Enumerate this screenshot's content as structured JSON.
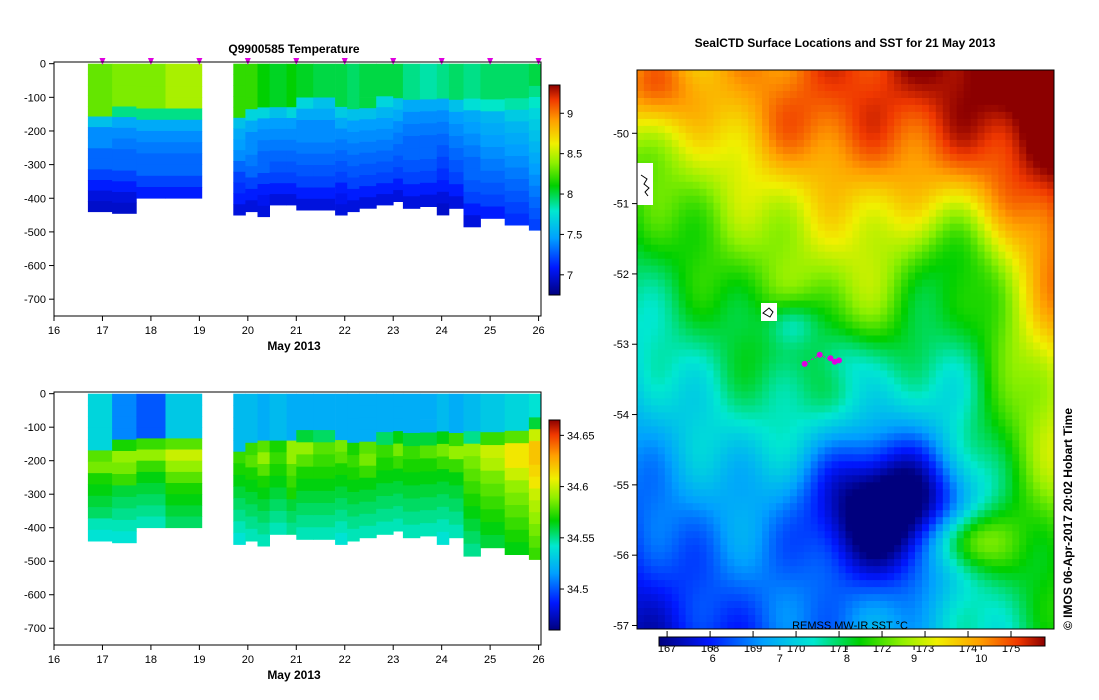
{
  "chart_data": [
    {
      "type": "heatmap",
      "title": "Q9900585  Temperature",
      "xlabel": "May 2013",
      "xticks": [
        "16",
        "17",
        "18",
        "19",
        "20",
        "21",
        "22",
        "23",
        "24",
        "25",
        "26"
      ],
      "yticks": [
        "0",
        "-100",
        "-200",
        "-300",
        "-400",
        "-500",
        "-600",
        "-700"
      ],
      "xlim": [
        16,
        26.05
      ],
      "ylim": [
        -750,
        5
      ],
      "colorbar": {
        "ticks": [
          "7",
          "7.5",
          "8",
          "8.5",
          "9"
        ],
        "range": [
          6.75,
          9.35
        ]
      },
      "profile_marker_days": [
        17,
        18,
        19,
        20,
        21,
        22,
        23,
        24,
        25,
        26
      ],
      "profiles": [
        {
          "x0": 16.7,
          "x1": 17.2,
          "depth": 440,
          "v": [
            8.3,
            8.3,
            8.3,
            8.3,
            8.3,
            7.6,
            7.4,
            7.4,
            7.3,
            7.3,
            7.2,
            7.1,
            7.0,
            6.95
          ]
        },
        {
          "x0": 17.2,
          "x1": 17.7,
          "depth": 445,
          "v": [
            8.35,
            8.35,
            8.35,
            8.35,
            7.9,
            7.5,
            7.4,
            7.35,
            7.3,
            7.3,
            7.2,
            7.1,
            7.0,
            6.95
          ]
        },
        {
          "x0": 17.7,
          "x1": 18.3,
          "depth": 400,
          "v": [
            8.35,
            8.35,
            8.35,
            8.35,
            7.9,
            7.5,
            7.4,
            7.35,
            7.3,
            7.3,
            7.2,
            7.1
          ]
        },
        {
          "x0": 18.3,
          "x1": 19.05,
          "depth": 400,
          "v": [
            8.45,
            8.45,
            8.45,
            8.45,
            7.9,
            7.5,
            7.4,
            7.35,
            7.3,
            7.3,
            7.2,
            7.1
          ]
        },
        {
          "x0": 19.7,
          "x1": 19.95,
          "depth": 450,
          "v": [
            8.2,
            8.2,
            8.2,
            8.2,
            8.2,
            7.6,
            7.5,
            7.45,
            7.4,
            7.3,
            7.2,
            7.15,
            7.1,
            7.0
          ]
        },
        {
          "x0": 19.95,
          "x1": 20.2,
          "depth": 440,
          "v": [
            8.2,
            8.2,
            8.2,
            8.2,
            7.7,
            7.5,
            7.4,
            7.4,
            7.35,
            7.3,
            7.2,
            7.1,
            7.0
          ]
        },
        {
          "x0": 20.2,
          "x1": 20.45,
          "depth": 455,
          "v": [
            8.1,
            8.1,
            8.1,
            8.1,
            7.7,
            7.45,
            7.4,
            7.35,
            7.3,
            7.3,
            7.2,
            7.1,
            7.05,
            7.0
          ]
        },
        {
          "x0": 20.45,
          "x1": 20.8,
          "depth": 420,
          "v": [
            8.05,
            8.05,
            8.05,
            8.05,
            7.6,
            7.45,
            7.4,
            7.35,
            7.3,
            7.25,
            7.2,
            7.1,
            7.0
          ]
        },
        {
          "x0": 20.8,
          "x1": 21.0,
          "depth": 420,
          "v": [
            8.1,
            8.1,
            8.1,
            8.1,
            7.7,
            7.45,
            7.4,
            7.35,
            7.3,
            7.25,
            7.2,
            7.1,
            7.0
          ]
        },
        {
          "x0": 21.0,
          "x1": 21.35,
          "depth": 435,
          "v": [
            8.05,
            8.05,
            8.05,
            7.7,
            7.5,
            7.4,
            7.4,
            7.35,
            7.3,
            7.25,
            7.2,
            7.1,
            7.0
          ]
        },
        {
          "x0": 21.35,
          "x1": 21.8,
          "depth": 435,
          "v": [
            8.0,
            8.0,
            8.0,
            7.6,
            7.5,
            7.4,
            7.4,
            7.35,
            7.3,
            7.25,
            7.2,
            7.1,
            7.0
          ]
        },
        {
          "x0": 21.8,
          "x1": 22.05,
          "depth": 450,
          "v": [
            8.0,
            8.0,
            8.0,
            8.0,
            7.65,
            7.5,
            7.4,
            7.35,
            7.3,
            7.25,
            7.2,
            7.1,
            7.05,
            7.0
          ]
        },
        {
          "x0": 22.05,
          "x1": 22.3,
          "depth": 440,
          "v": [
            7.95,
            7.95,
            7.95,
            7.95,
            7.6,
            7.45,
            7.4,
            7.35,
            7.3,
            7.25,
            7.2,
            7.1,
            7.0
          ]
        },
        {
          "x0": 22.3,
          "x1": 22.65,
          "depth": 430,
          "v": [
            8.0,
            8.0,
            8.0,
            8.0,
            7.6,
            7.45,
            7.4,
            7.35,
            7.3,
            7.25,
            7.2,
            7.1,
            7.0
          ]
        },
        {
          "x0": 22.65,
          "x1": 23.0,
          "depth": 420,
          "v": [
            8.0,
            8.0,
            8.0,
            7.7,
            7.55,
            7.45,
            7.4,
            7.35,
            7.3,
            7.25,
            7.2,
            7.1,
            7.0
          ]
        },
        {
          "x0": 23.0,
          "x1": 23.2,
          "depth": 410,
          "v": [
            8.0,
            8.0,
            8.0,
            7.6,
            7.5,
            7.4,
            7.35,
            7.3,
            7.25,
            7.2,
            7.1,
            7.0
          ]
        },
        {
          "x0": 23.2,
          "x1": 23.55,
          "depth": 430,
          "v": [
            7.9,
            7.9,
            7.9,
            7.5,
            7.4,
            7.35,
            7.3,
            7.3,
            7.25,
            7.2,
            7.1,
            7.0
          ]
        },
        {
          "x0": 23.55,
          "x1": 23.9,
          "depth": 425,
          "v": [
            7.85,
            7.85,
            7.85,
            7.5,
            7.4,
            7.35,
            7.3,
            7.3,
            7.25,
            7.2,
            7.1,
            7.0
          ]
        },
        {
          "x0": 23.9,
          "x1": 24.15,
          "depth": 450,
          "v": [
            7.9,
            7.9,
            7.9,
            7.5,
            7.4,
            7.35,
            7.3,
            7.25,
            7.2,
            7.15,
            7.1,
            7.0,
            6.95
          ]
        },
        {
          "x0": 24.15,
          "x1": 24.45,
          "depth": 430,
          "v": [
            7.95,
            7.95,
            7.95,
            7.6,
            7.45,
            7.4,
            7.35,
            7.3,
            7.25,
            7.2,
            7.1,
            7.0
          ]
        },
        {
          "x0": 24.45,
          "x1": 24.8,
          "depth": 485,
          "v": [
            7.9,
            7.9,
            7.9,
            7.75,
            7.5,
            7.45,
            7.4,
            7.35,
            7.3,
            7.3,
            7.25,
            7.2,
            7.1,
            7.0
          ]
        },
        {
          "x0": 24.8,
          "x1": 25.3,
          "depth": 460,
          "v": [
            7.95,
            7.95,
            7.95,
            7.8,
            7.55,
            7.5,
            7.45,
            7.4,
            7.35,
            7.3,
            7.25,
            7.2,
            7.1
          ]
        },
        {
          "x0": 25.3,
          "x1": 25.8,
          "depth": 480,
          "v": [
            7.95,
            7.95,
            7.95,
            7.85,
            7.65,
            7.55,
            7.5,
            7.45,
            7.4,
            7.35,
            7.3,
            7.25,
            7.2,
            7.15
          ]
        },
        {
          "x0": 25.8,
          "x1": 26.05,
          "depth": 495,
          "v": [
            8.0,
            8.0,
            7.9,
            7.8,
            7.7,
            7.65,
            7.6,
            7.55,
            7.5,
            7.45,
            7.4,
            7.35,
            7.3,
            7.25,
            7.2
          ]
        }
      ]
    },
    {
      "type": "heatmap",
      "xlabel": "May 2013",
      "xticks": [
        "16",
        "17",
        "18",
        "19",
        "20",
        "21",
        "22",
        "23",
        "24",
        "25",
        "26"
      ],
      "yticks": [
        "0",
        "-100",
        "-200",
        "-300",
        "-400",
        "-500",
        "-600",
        "-700"
      ],
      "xlim": [
        16,
        26.05
      ],
      "ylim": [
        -750,
        5
      ],
      "colorbar": {
        "ticks": [
          "34.5",
          "34.55",
          "34.6",
          "34.65"
        ],
        "range": [
          34.46,
          34.665
        ]
      },
      "profiles": [
        {
          "x0": 16.7,
          "x1": 17.2,
          "depth": 440,
          "v": [
            34.535,
            34.535,
            34.535,
            34.535,
            34.535,
            34.58,
            34.585,
            34.57,
            34.565,
            34.56,
            34.555,
            34.545,
            34.54
          ]
        },
        {
          "x0": 17.2,
          "x1": 17.7,
          "depth": 445,
          "v": [
            34.51,
            34.51,
            34.51,
            34.51,
            34.57,
            34.59,
            34.585,
            34.575,
            34.56,
            34.555,
            34.55,
            34.545,
            34.54
          ]
        },
        {
          "x0": 17.7,
          "x1": 18.3,
          "depth": 400,
          "v": [
            34.5,
            34.5,
            34.5,
            34.5,
            34.575,
            34.59,
            34.575,
            34.565,
            34.56,
            34.555,
            34.55,
            34.545
          ]
        },
        {
          "x0": 18.3,
          "x1": 19.05,
          "depth": 400,
          "v": [
            34.53,
            34.53,
            34.53,
            34.53,
            34.58,
            34.6,
            34.59,
            34.58,
            34.57,
            34.565,
            34.56,
            34.555
          ]
        },
        {
          "x0": 19.7,
          "x1": 19.95,
          "depth": 450,
          "v": [
            34.525,
            34.525,
            34.525,
            34.525,
            34.525,
            34.575,
            34.57,
            34.565,
            34.56,
            34.555,
            34.55,
            34.545,
            34.54
          ]
        },
        {
          "x0": 19.95,
          "x1": 20.2,
          "depth": 440,
          "v": [
            34.525,
            34.525,
            34.525,
            34.525,
            34.575,
            34.58,
            34.57,
            34.565,
            34.56,
            34.555,
            34.55,
            34.545
          ]
        },
        {
          "x0": 20.2,
          "x1": 20.45,
          "depth": 455,
          "v": [
            34.52,
            34.52,
            34.52,
            34.52,
            34.58,
            34.59,
            34.58,
            34.57,
            34.565,
            34.56,
            34.555,
            34.55,
            34.545
          ]
        },
        {
          "x0": 20.45,
          "x1": 20.8,
          "depth": 420,
          "v": [
            34.525,
            34.525,
            34.525,
            34.525,
            34.57,
            34.575,
            34.57,
            34.565,
            34.56,
            34.555,
            34.55,
            34.545
          ]
        },
        {
          "x0": 20.8,
          "x1": 21.0,
          "depth": 420,
          "v": [
            34.52,
            34.52,
            34.52,
            34.52,
            34.59,
            34.59,
            34.58,
            34.575,
            34.57,
            34.56,
            34.555,
            34.55
          ]
        },
        {
          "x0": 21.0,
          "x1": 21.35,
          "depth": 435,
          "v": [
            34.52,
            34.52,
            34.52,
            34.56,
            34.59,
            34.58,
            34.57,
            34.565,
            34.56,
            34.555,
            34.55,
            34.545
          ]
        },
        {
          "x0": 21.35,
          "x1": 21.8,
          "depth": 435,
          "v": [
            34.52,
            34.52,
            34.52,
            34.555,
            34.58,
            34.575,
            34.57,
            34.565,
            34.56,
            34.555,
            34.55,
            34.545
          ]
        },
        {
          "x0": 21.8,
          "x1": 22.05,
          "depth": 450,
          "v": [
            34.52,
            34.52,
            34.52,
            34.52,
            34.585,
            34.58,
            34.57,
            34.565,
            34.56,
            34.555,
            34.55,
            34.545,
            34.54
          ]
        },
        {
          "x0": 22.05,
          "x1": 22.3,
          "depth": 440,
          "v": [
            34.52,
            34.52,
            34.52,
            34.52,
            34.57,
            34.575,
            34.57,
            34.565,
            34.56,
            34.555,
            34.55,
            34.545
          ]
        },
        {
          "x0": 22.3,
          "x1": 22.65,
          "depth": 430,
          "v": [
            34.52,
            34.52,
            34.52,
            34.52,
            34.58,
            34.585,
            34.575,
            34.565,
            34.56,
            34.555,
            34.55,
            34.545
          ]
        },
        {
          "x0": 22.65,
          "x1": 23.0,
          "depth": 420,
          "v": [
            34.52,
            34.52,
            34.52,
            34.555,
            34.575,
            34.57,
            34.565,
            34.56,
            34.555,
            34.55,
            34.545
          ]
        },
        {
          "x0": 23.0,
          "x1": 23.2,
          "depth": 410,
          "v": [
            34.52,
            34.52,
            34.52,
            34.565,
            34.585,
            34.575,
            34.565,
            34.56,
            34.555,
            34.55,
            34.545
          ]
        },
        {
          "x0": 23.2,
          "x1": 23.55,
          "depth": 430,
          "v": [
            34.52,
            34.52,
            34.52,
            34.56,
            34.575,
            34.57,
            34.565,
            34.56,
            34.555,
            34.55,
            34.545
          ]
        },
        {
          "x0": 23.55,
          "x1": 23.9,
          "depth": 425,
          "v": [
            34.52,
            34.52,
            34.52,
            34.56,
            34.58,
            34.57,
            34.565,
            34.56,
            34.555,
            34.55,
            34.545
          ]
        },
        {
          "x0": 23.9,
          "x1": 24.15,
          "depth": 450,
          "v": [
            34.525,
            34.525,
            34.525,
            34.565,
            34.585,
            34.575,
            34.565,
            34.56,
            34.555,
            34.55,
            34.545,
            34.54
          ]
        },
        {
          "x0": 24.15,
          "x1": 24.45,
          "depth": 430,
          "v": [
            34.52,
            34.52,
            34.52,
            34.575,
            34.59,
            34.575,
            34.565,
            34.56,
            34.555,
            34.55,
            34.545
          ]
        },
        {
          "x0": 24.45,
          "x1": 24.8,
          "depth": 485,
          "v": [
            34.525,
            34.525,
            34.525,
            34.55,
            34.59,
            34.585,
            34.58,
            34.575,
            34.57,
            34.565,
            34.56,
            34.555,
            34.55
          ]
        },
        {
          "x0": 24.8,
          "x1": 25.3,
          "depth": 460,
          "v": [
            34.53,
            34.53,
            34.53,
            34.575,
            34.6,
            34.595,
            34.585,
            34.58,
            34.575,
            34.57,
            34.565,
            34.56
          ]
        },
        {
          "x0": 25.3,
          "x1": 25.8,
          "depth": 480,
          "v": [
            34.535,
            34.535,
            34.535,
            34.58,
            34.61,
            34.61,
            34.6,
            34.59,
            34.585,
            34.58,
            34.575,
            34.57,
            34.565
          ]
        },
        {
          "x0": 25.8,
          "x1": 26.05,
          "depth": 495,
          "v": [
            34.54,
            34.54,
            34.56,
            34.6,
            34.62,
            34.62,
            34.615,
            34.61,
            34.6,
            34.595,
            34.59,
            34.585,
            34.58,
            34.575
          ]
        }
      ]
    },
    {
      "type": "heatmap",
      "title": "SealCTD Surface Locations and SST for 21 May 2013",
      "xticks": [
        "167",
        "168",
        "169",
        "170",
        "171",
        "172",
        "173",
        "174",
        "175"
      ],
      "yticks": [
        "-50",
        "-51",
        "-52",
        "-53",
        "-54",
        "-55",
        "-56",
        "-57"
      ],
      "xlim": [
        166.3,
        176.0
      ],
      "ylim": [
        -57.05,
        -49.1
      ],
      "colorbar": {
        "label": "REMSS MW-IR SST °C",
        "ticks": [
          "6",
          "7",
          "8",
          "9",
          "10"
        ],
        "range": [
          5.2,
          10.95
        ]
      },
      "side_text": "© IMOS 06-Apr-2017 20:02 Hobart Time",
      "locations": [
        [
          170.2,
          -53.28
        ],
        [
          170.55,
          -53.15
        ],
        [
          170.9,
          -53.25
        ],
        [
          170.8,
          -53.2
        ],
        [
          171.0,
          -53.23
        ]
      ]
    }
  ]
}
